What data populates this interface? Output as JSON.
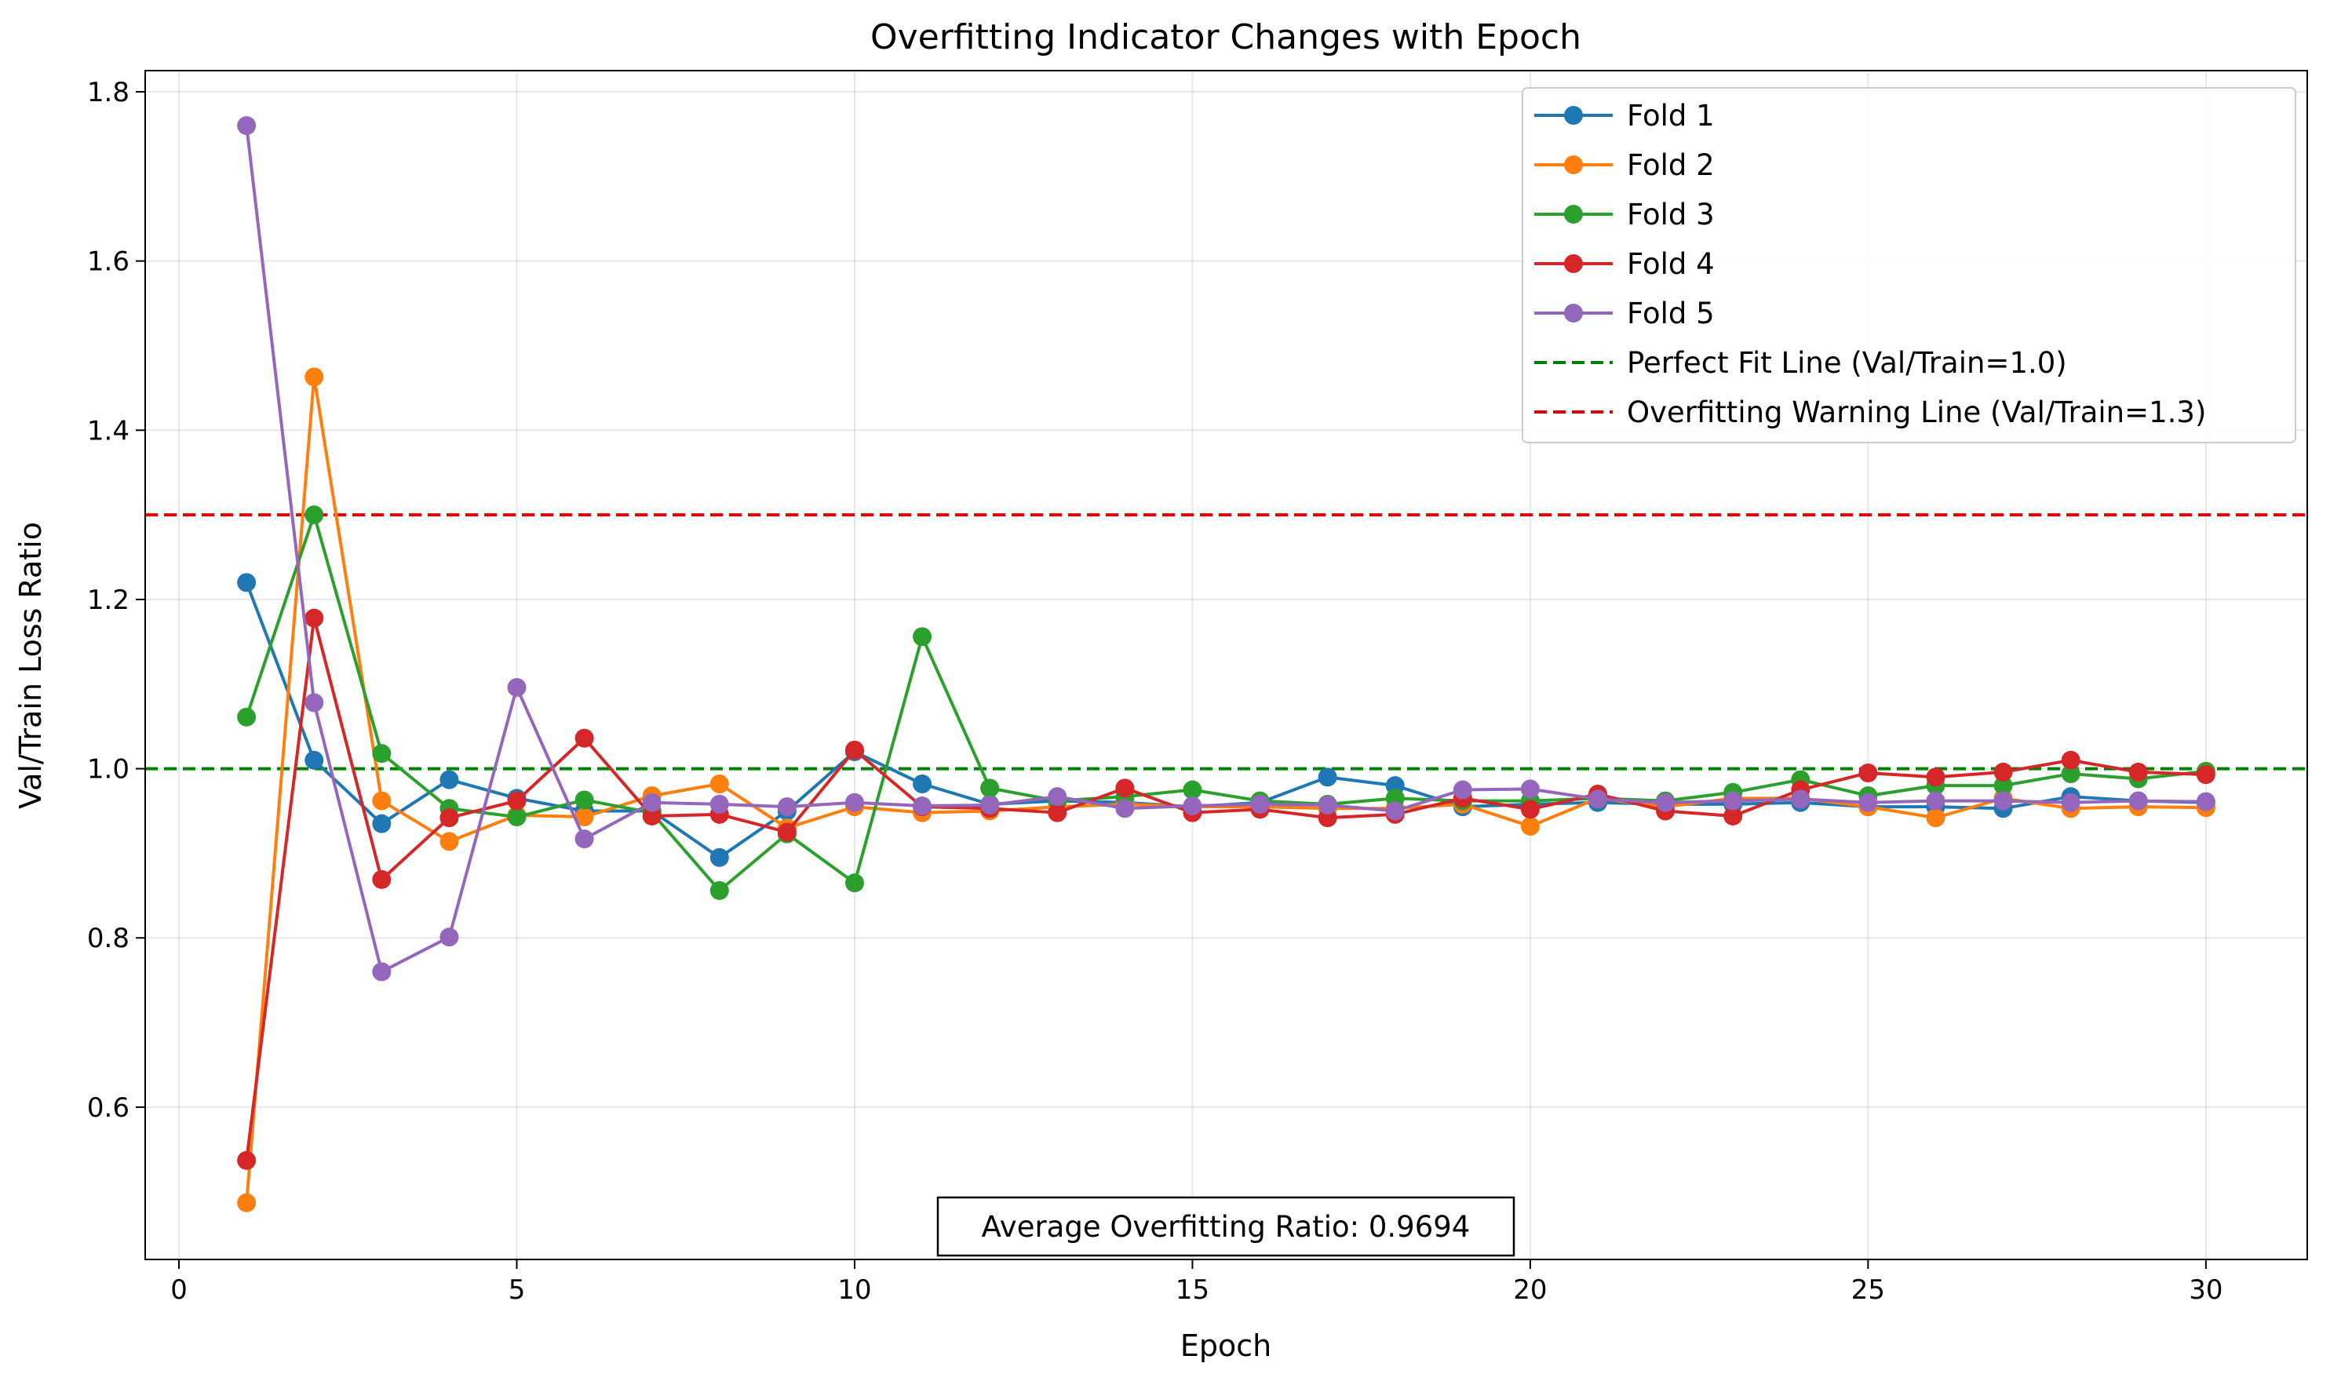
{
  "chart_data": {
    "type": "line",
    "title": "Overfitting Indicator Changes with Epoch",
    "xlabel": "Epoch",
    "ylabel": "Val/Train Loss Ratio",
    "xlim": [
      -0.5,
      31.5
    ],
    "ylim": [
      0.42,
      1.825
    ],
    "xticks": [
      0,
      5,
      10,
      15,
      20,
      25,
      30
    ],
    "yticks": [
      0.6,
      0.8,
      1.0,
      1.2,
      1.4,
      1.6,
      1.8
    ],
    "xtick_labels": [
      "0",
      "5",
      "10",
      "15",
      "20",
      "25",
      "30"
    ],
    "ytick_labels": [
      "0.6",
      "0.8",
      "1.0",
      "1.2",
      "1.4",
      "1.6",
      "1.8"
    ],
    "grid": true,
    "legend_position": "top-right",
    "x": [
      1,
      2,
      3,
      4,
      5,
      6,
      7,
      8,
      9,
      10,
      11,
      12,
      13,
      14,
      15,
      16,
      17,
      18,
      19,
      20,
      21,
      22,
      23,
      24,
      25,
      26,
      27,
      28,
      29,
      30
    ],
    "series": [
      {
        "name": "Fold 1",
        "color": "#1f77b4",
        "values": [
          1.22,
          1.01,
          0.935,
          0.987,
          0.965,
          0.95,
          0.95,
          0.895,
          0.95,
          1.02,
          0.982,
          0.958,
          0.962,
          0.96,
          0.955,
          0.96,
          0.99,
          0.98,
          0.955,
          0.958,
          0.96,
          0.958,
          0.958,
          0.96,
          0.955,
          0.955,
          0.953,
          0.967,
          0.962,
          0.96
        ]
      },
      {
        "name": "Fold 2",
        "color": "#ff7f0e",
        "values": [
          0.487,
          1.463,
          0.962,
          0.914,
          0.945,
          0.943,
          0.968,
          0.982,
          0.93,
          0.955,
          0.948,
          0.95,
          0.955,
          0.958,
          0.955,
          0.955,
          0.953,
          0.953,
          0.958,
          0.932,
          0.965,
          0.955,
          0.965,
          0.965,
          0.955,
          0.942,
          0.965,
          0.953,
          0.955,
          0.954
        ]
      },
      {
        "name": "Fold 3",
        "color": "#2ca02c",
        "values": [
          1.061,
          1.3,
          1.018,
          0.953,
          0.943,
          0.963,
          0.948,
          0.856,
          0.923,
          0.865,
          1.156,
          0.977,
          0.962,
          0.967,
          0.975,
          0.962,
          0.958,
          0.965,
          0.962,
          0.962,
          0.965,
          0.962,
          0.972,
          0.987,
          0.968,
          0.98,
          0.98,
          0.994,
          0.988,
          0.997
        ]
      },
      {
        "name": "Fold 4",
        "color": "#d62728",
        "values": [
          0.537,
          1.178,
          0.869,
          0.942,
          0.962,
          1.036,
          0.944,
          0.946,
          0.925,
          1.022,
          0.955,
          0.953,
          0.948,
          0.977,
          0.948,
          0.952,
          0.942,
          0.946,
          0.965,
          0.952,
          0.97,
          0.95,
          0.944,
          0.975,
          0.995,
          0.99,
          0.996,
          1.01,
          0.996,
          0.993
        ]
      },
      {
        "name": "Fold 5",
        "color": "#9467bd",
        "values": [
          1.76,
          1.078,
          0.76,
          0.801,
          1.096,
          0.917,
          0.96,
          0.958,
          0.955,
          0.96,
          0.956,
          0.957,
          0.967,
          0.953,
          0.956,
          0.958,
          0.957,
          0.95,
          0.975,
          0.976,
          0.964,
          0.96,
          0.962,
          0.964,
          0.96,
          0.962,
          0.962,
          0.96,
          0.962,
          0.961
        ]
      }
    ],
    "reference_lines": [
      {
        "name": "Perfect Fit Line (Val/Train=1.0)",
        "y": 1.0,
        "color": "#008000",
        "style": "dashed"
      },
      {
        "name": "Overfitting Warning Line (Val/Train=1.3)",
        "y": 1.3,
        "color": "#e00000",
        "style": "dashed"
      }
    ],
    "annotation": "Average Overfitting Ratio: 0.9694"
  }
}
